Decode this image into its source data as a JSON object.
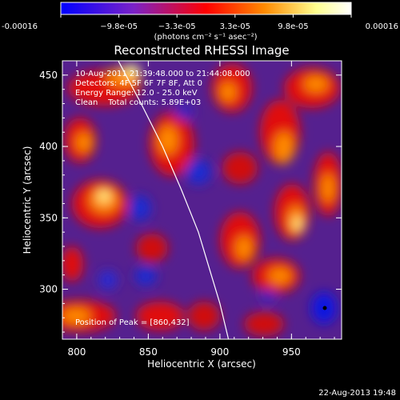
{
  "chart_data": {
    "type": "heatmap",
    "title": "Reconstructed RHESSI Image",
    "xlabel": "Heliocentric X (arcsec)",
    "ylabel": "Heliocentric Y (arcsec)",
    "xlim": [
      790,
      985
    ],
    "ylim": [
      265,
      460
    ],
    "xticks": [
      "800",
      "850",
      "900",
      "950"
    ],
    "yticks": [
      "300",
      "350",
      "400",
      "450"
    ],
    "xtick_values": [
      800,
      850,
      900,
      950
    ],
    "ytick_values": [
      300,
      350,
      400,
      450
    ],
    "colorbar": {
      "ticks": [
        "-0.00016",
        "−9.8e-05",
        "−3.3e-05",
        "3.3e-05",
        "9.8e-05",
        "0.00016"
      ],
      "unit": "(photons cm⁻² s⁻¹ asec⁻²)",
      "range": [
        -0.00016,
        0.00016
      ],
      "colors": [
        "#0000ff",
        "#7a22c8",
        "#ff0000",
        "#ff8a00",
        "#ffff90",
        "#ffffff"
      ]
    },
    "annotations": {
      "time_range": "10-Aug-2011 21:39:48.000 to 21:44:08.000",
      "detectors": "Detectors: 4F 5F 6F 7F 8F, Att 0",
      "energy_range": "Energy Range: 12.0 - 25.0 keV",
      "clean": "Clean    Total counts: 5.89E+03",
      "peak": "Position of Peak = [860,432]"
    },
    "peak_position": [
      860,
      432
    ],
    "limb_curve": [
      [
        829,
        460
      ],
      [
        845,
        430
      ],
      [
        860,
        400
      ],
      [
        873,
        370
      ],
      [
        885,
        340
      ],
      [
        894,
        310
      ],
      [
        900,
        290
      ],
      [
        906,
        265
      ]
    ]
  },
  "footer": {
    "date": "22-Aug-2013 19:48"
  }
}
